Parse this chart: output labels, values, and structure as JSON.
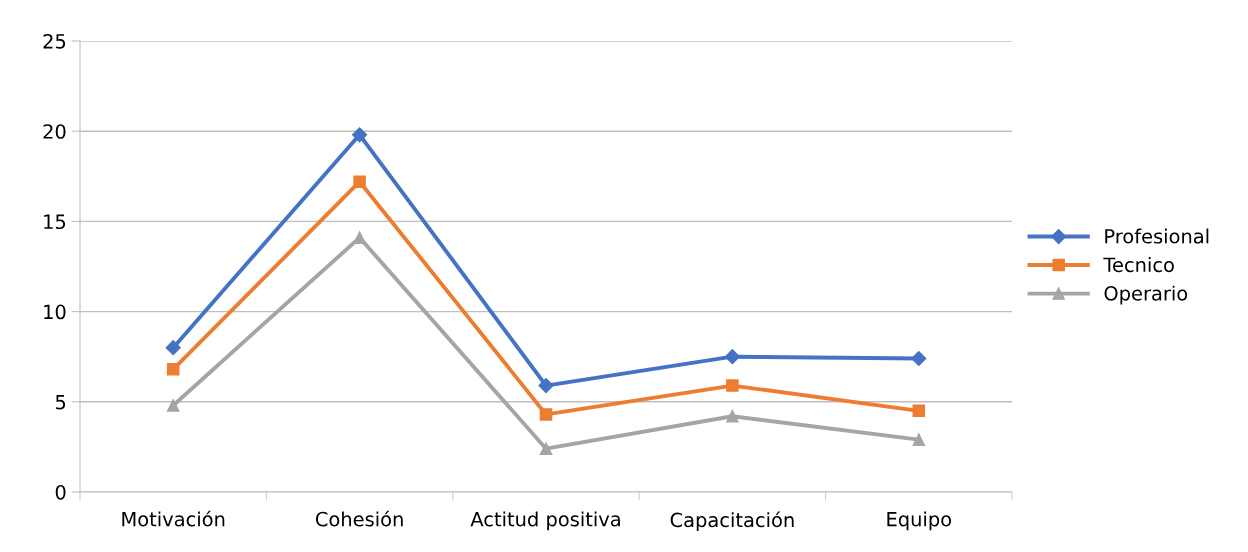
{
  "chart_data": {
    "type": "line",
    "categories": [
      "Motivación",
      "Cohesión",
      "Actitud positiva",
      "Capacitación",
      "Equipo"
    ],
    "series": [
      {
        "name": "Profesional",
        "color": "#4472c4",
        "marker": "diamond",
        "values": [
          8.0,
          19.8,
          5.9,
          7.5,
          7.4
        ]
      },
      {
        "name": "Tecnico",
        "color": "#ed7d31",
        "marker": "square",
        "values": [
          6.8,
          17.2,
          4.3,
          5.9,
          4.5
        ]
      },
      {
        "name": "Operario",
        "color": "#a5a5a5",
        "marker": "triangle",
        "values": [
          4.8,
          14.1,
          2.4,
          4.2,
          2.9
        ]
      }
    ],
    "ylim": [
      0,
      25
    ],
    "yticks": [
      0,
      5,
      10,
      15,
      20,
      25
    ],
    "grid": "y",
    "legend": "right",
    "line_style": "solid"
  }
}
